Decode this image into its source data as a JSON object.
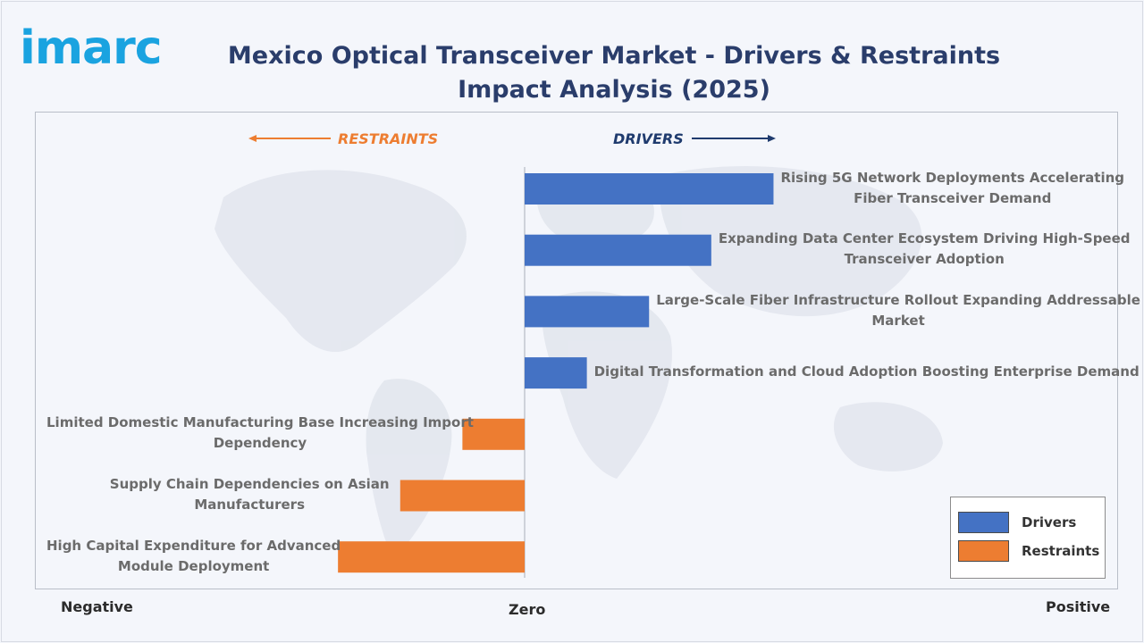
{
  "logo": "imarc",
  "title": "Mexico Optical Transceiver Market - Drivers & Restraints Impact Analysis (2025)",
  "colors": {
    "drivers": "#4472c4",
    "restraints": "#ed7d31",
    "title": "#2a3d6b",
    "logo": "#1aa3e0",
    "restraints_text": "#ed7d31",
    "drivers_text": "#1f3b6e"
  },
  "direction_labels": {
    "restraints": "RESTRAINTS",
    "drivers": "DRIVERS"
  },
  "axis": {
    "negative": "Negative",
    "zero": "Zero",
    "positive": "Positive"
  },
  "legend": [
    {
      "label": "Drivers"
    },
    {
      "label": "Restraints"
    }
  ],
  "chart_data": {
    "type": "bar",
    "orientation": "horizontal",
    "title": "Mexico Optical Transceiver Market - Drivers & Restraints Impact Analysis (2025)",
    "xlim": [
      -1,
      1
    ],
    "categories": [
      "Rising 5G Network Deployments Accelerating Fiber Transceiver Demand",
      "Expanding Data Center Ecosystem Driving High-Speed Transceiver Adoption",
      "Large-Scale Fiber Infrastructure Rollout Expanding Addressable Market",
      "Digital Transformation and Cloud Adoption Boosting Enterprise Demand",
      "Limited Domestic Manufacturing Base Increasing Import Dependency",
      "Supply Chain Dependencies on Asian Manufacturers",
      "High Capital Expenditure for Advanced Module Deployment"
    ],
    "series": [
      {
        "name": "Drivers",
        "values": [
          0.42,
          0.315,
          0.21,
          0.105,
          null,
          null,
          null
        ]
      },
      {
        "name": "Restraints",
        "values": [
          null,
          null,
          null,
          null,
          -0.105,
          -0.21,
          -0.315
        ]
      }
    ],
    "label_lines": [
      [
        "Rising 5G Network Deployments Accelerating",
        "Fiber Transceiver Demand"
      ],
      [
        "Expanding Data Center Ecosystem Driving High-Speed",
        "Transceiver Adoption"
      ],
      [
        "Large-Scale Fiber Infrastructure Rollout Expanding Addressable",
        "Market"
      ],
      [
        "Digital Transformation and Cloud Adoption Boosting Enterprise Demand"
      ],
      [
        "Limited Domestic Manufacturing Base Increasing Import",
        "Dependency"
      ],
      [
        "Supply Chain Dependencies on Asian",
        "Manufacturers"
      ],
      [
        "High Capital Expenditure for Advanced",
        "Module Deployment"
      ]
    ],
    "grid": false,
    "legend_position": "bottom-right"
  }
}
